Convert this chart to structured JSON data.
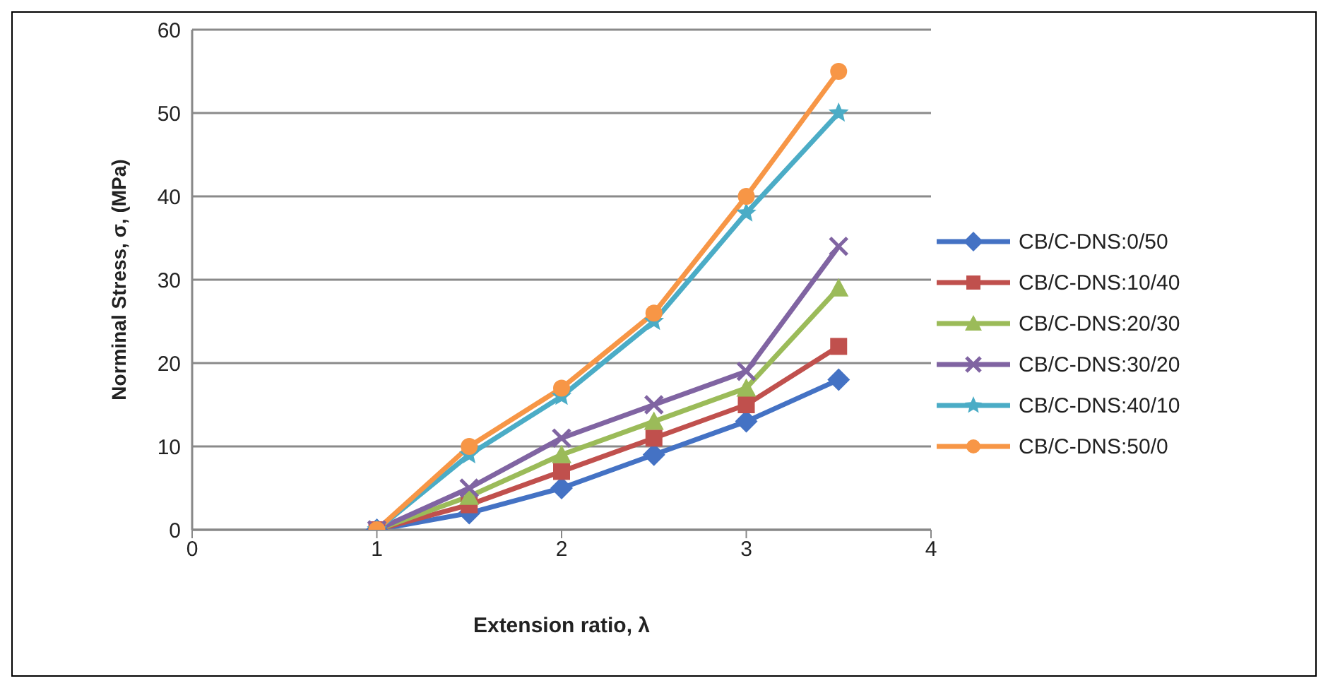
{
  "chart_data": {
    "type": "line",
    "xlabel": "Extension ratio, λ",
    "ylabel": "Norminal Stress, σ, (MPa)",
    "x": [
      1,
      1.5,
      2,
      2.5,
      3,
      3.5
    ],
    "xlim": [
      0,
      4
    ],
    "xticks": [
      0,
      1,
      2,
      3,
      4
    ],
    "ylim": [
      0,
      60
    ],
    "yticks": [
      0,
      10,
      20,
      30,
      40,
      50,
      60
    ],
    "grid": "y",
    "legend": "right",
    "line_style": "solid",
    "series": [
      {
        "name": "CB/C-DNS:0/50",
        "color": "#4472c4",
        "marker": "diamond",
        "values": [
          0,
          2,
          5,
          9,
          13,
          18
        ]
      },
      {
        "name": "CB/C-DNS:10/40",
        "color": "#c0504d",
        "marker": "square",
        "values": [
          0,
          3,
          7,
          11,
          15,
          22
        ]
      },
      {
        "name": "CB/C-DNS:20/30",
        "color": "#9bbb59",
        "marker": "triangle",
        "values": [
          0,
          4,
          9,
          13,
          17,
          29
        ]
      },
      {
        "name": "CB/C-DNS:30/20",
        "color": "#8064a2",
        "marker": "cross",
        "values": [
          0,
          5,
          11,
          15,
          19,
          34
        ]
      },
      {
        "name": "CB/C-DNS:40/10",
        "color": "#4bacc6",
        "marker": "star",
        "values": [
          0,
          9,
          16,
          25,
          38,
          50
        ]
      },
      {
        "name": "CB/C-DNS:50/0",
        "color": "#f79646",
        "marker": "circle",
        "values": [
          0,
          10,
          17,
          26,
          40,
          55
        ]
      }
    ]
  }
}
